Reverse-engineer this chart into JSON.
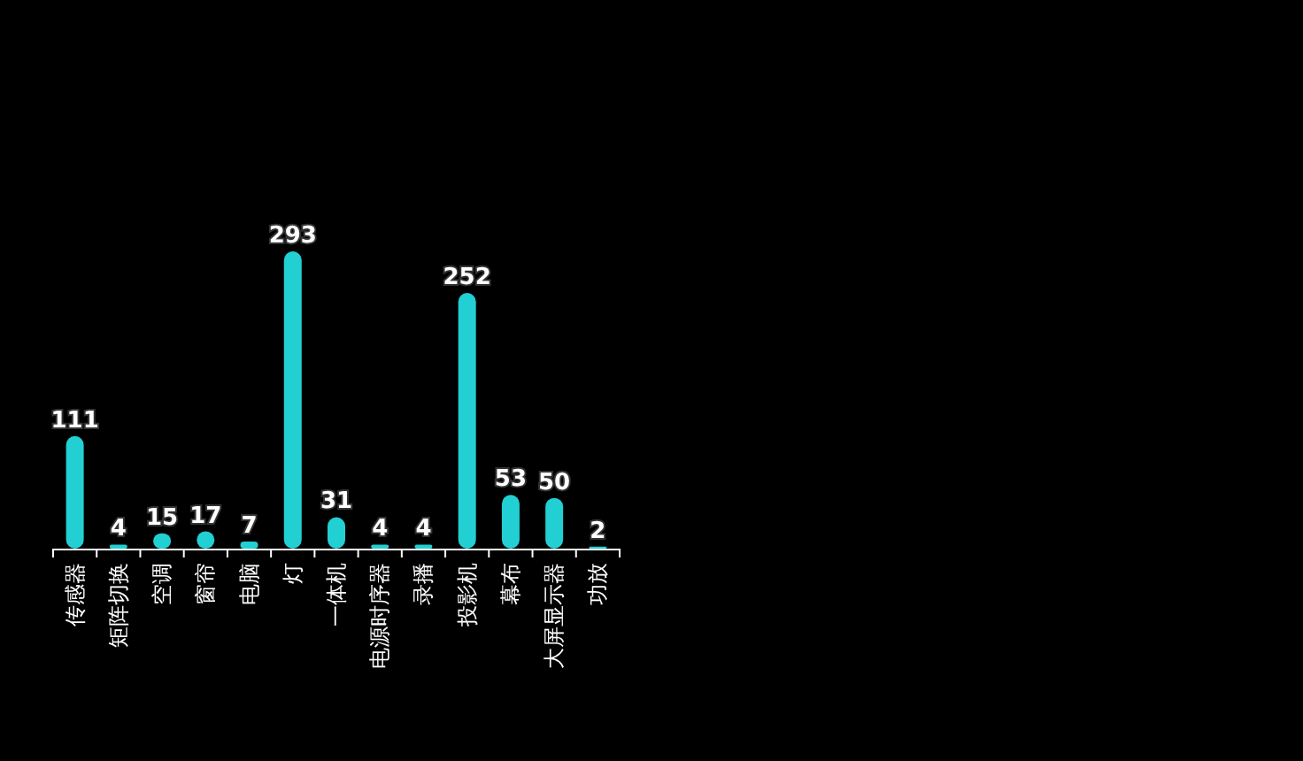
{
  "chart_data": {
    "type": "bar",
    "categories": [
      "传感器",
      "矩阵切换",
      "空调",
      "窗帘",
      "电脑",
      "灯",
      "一体机",
      "电源时序器",
      "录播",
      "投影机",
      "幕布",
      "大屏显示器",
      "功放"
    ],
    "values": [
      111,
      4,
      15,
      17,
      7,
      293,
      31,
      4,
      4,
      252,
      53,
      50,
      2
    ],
    "color": "#22cfd3",
    "data_labels": true
  }
}
